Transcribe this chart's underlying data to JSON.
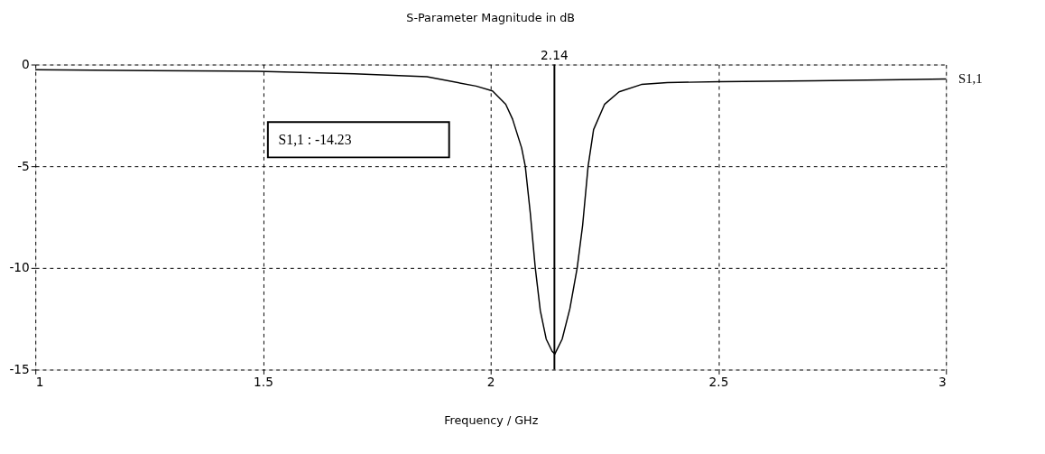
{
  "chart_data": {
    "type": "line",
    "title": "S-Parameter Magnitude in dB",
    "xlabel": "Frequency / GHz",
    "x": [
      1.0,
      1.25,
      1.488,
      1.7,
      1.86,
      1.968,
      2.004,
      2.033,
      2.048,
      2.068,
      2.076,
      2.087,
      2.098,
      2.109,
      2.122,
      2.135,
      2.141,
      2.157,
      2.174,
      2.19,
      2.202,
      2.214,
      2.226,
      2.25,
      2.282,
      2.331,
      2.388,
      2.504,
      2.711,
      3.0
    ],
    "series": [
      {
        "name": "S1,1",
        "color": "#000000",
        "values": [
          -0.25,
          -0.3,
          -0.33,
          -0.45,
          -0.6,
          -1.06,
          -1.3,
          -1.95,
          -2.68,
          -4.1,
          -5,
          -7.3,
          -10,
          -12.1,
          -13.5,
          -14.1,
          -14.23,
          -13.5,
          -12.0,
          -10,
          -7.9,
          -5,
          -3.2,
          -1.96,
          -1.34,
          -0.98,
          -0.89,
          -0.84,
          -0.8,
          -0.71
        ]
      }
    ],
    "xlim": [
      1,
      3
    ],
    "xticks": [
      1,
      1.5,
      2,
      2.5,
      3
    ],
    "ylim": [
      -15,
      0
    ],
    "yticks": [
      0,
      -5,
      -10,
      -15
    ],
    "grid": true,
    "line_style": "solid",
    "marker": "none",
    "ref_lines": [
      {
        "axis": "x",
        "value": 2.14,
        "label": "2.14",
        "color": "#000000"
      }
    ],
    "annotations": [
      "S1,1 : -14.23"
    ]
  }
}
